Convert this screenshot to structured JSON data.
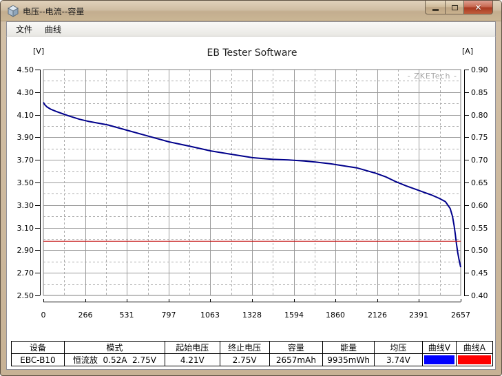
{
  "window": {
    "title": "电压--电流--容量",
    "icons": {
      "app": "cube-app-icon",
      "minimize": "minimize-icon",
      "maximize": "maximize-icon",
      "close": "close-icon"
    }
  },
  "menu": {
    "items": [
      "文件",
      "曲线"
    ]
  },
  "chart_data": {
    "type": "line",
    "title": "EB Tester Software",
    "watermark": "- ZKETech -",
    "grid": true,
    "x": {
      "min": 0,
      "max": 2657,
      "tick_labels": [
        "0",
        "266",
        "531",
        "797",
        "1063",
        "1328",
        "1594",
        "1860",
        "2126",
        "2391",
        "2657"
      ]
    },
    "y_left": {
      "label": "[V]",
      "min": 2.5,
      "max": 4.5,
      "major": 0.2,
      "minor": 0.1,
      "tick_labels": [
        "4.50",
        "4.30",
        "4.10",
        "3.90",
        "3.70",
        "3.50",
        "3.30",
        "3.10",
        "2.90",
        "2.70",
        "2.50"
      ]
    },
    "y_right": {
      "label": "[A]",
      "min": 0.4,
      "max": 0.9,
      "major": 0.05,
      "tick_labels": [
        "0.90",
        "0.85",
        "0.80",
        "0.75",
        "0.70",
        "0.65",
        "0.60",
        "0.55",
        "0.50",
        "0.45",
        "0.40"
      ]
    },
    "series": [
      {
        "name": "voltage",
        "axis": "left",
        "color": "#00008b",
        "width": 2,
        "points": [
          [
            0,
            4.21
          ],
          [
            8,
            4.19
          ],
          [
            22,
            4.17
          ],
          [
            45,
            4.15
          ],
          [
            80,
            4.13
          ],
          [
            120,
            4.11
          ],
          [
            160,
            4.09
          ],
          [
            230,
            4.06
          ],
          [
            290,
            4.04
          ],
          [
            410,
            4.01
          ],
          [
            540,
            3.96
          ],
          [
            670,
            3.91
          ],
          [
            800,
            3.86
          ],
          [
            935,
            3.82
          ],
          [
            1065,
            3.78
          ],
          [
            1195,
            3.75
          ],
          [
            1330,
            3.72
          ],
          [
            1460,
            3.705
          ],
          [
            1560,
            3.7
          ],
          [
            1660,
            3.69
          ],
          [
            1740,
            3.68
          ],
          [
            1830,
            3.665
          ],
          [
            1900,
            3.65
          ],
          [
            1995,
            3.63
          ],
          [
            2070,
            3.6
          ],
          [
            2110,
            3.585
          ],
          [
            2180,
            3.55
          ],
          [
            2240,
            3.51
          ],
          [
            2310,
            3.47
          ],
          [
            2370,
            3.44
          ],
          [
            2430,
            3.41
          ],
          [
            2470,
            3.39
          ],
          [
            2520,
            3.36
          ],
          [
            2560,
            3.33
          ],
          [
            2590,
            3.27
          ],
          [
            2605,
            3.2
          ],
          [
            2615,
            3.12
          ],
          [
            2623,
            3.04
          ],
          [
            2630,
            2.96
          ],
          [
            2638,
            2.88
          ],
          [
            2646,
            2.82
          ],
          [
            2657,
            2.75
          ]
        ]
      },
      {
        "name": "current",
        "axis": "right",
        "color": "#c41414",
        "width": 1.2,
        "points": [
          [
            0,
            0.52
          ],
          [
            2657,
            0.52
          ]
        ]
      }
    ]
  },
  "table": {
    "headers": [
      "设备",
      "模式",
      "起始电压",
      "终止电压",
      "容量",
      "能量",
      "均压",
      "曲线V",
      "曲线A"
    ],
    "values": {
      "device": "EBC-B10",
      "mode": "恒流放  0.52A  2.75V",
      "start_v": "4.21V",
      "end_v": "2.75V",
      "capacity": "2657mAh",
      "energy": "9935mWh",
      "avg_v": "3.74V"
    },
    "curve_v_color": "#0000ff",
    "curve_a_color": "#ff0000"
  }
}
